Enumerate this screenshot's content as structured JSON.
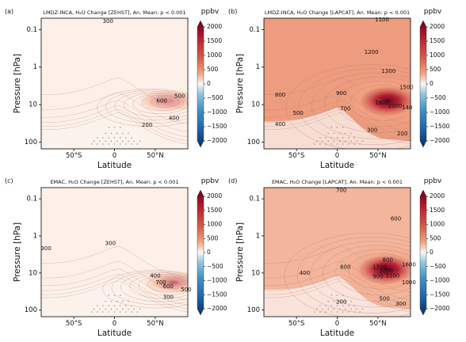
{
  "figure": {
    "shared": {
      "xlabel": "Latitude",
      "ylabel": "Pressure [hPa]",
      "x_ticks": [
        "50°S",
        "0",
        "50°N"
      ],
      "y_ticks": [
        "0.1",
        "1",
        "10",
        "100"
      ],
      "colorbar_unit": "ppbv",
      "colorbar_ticks": [
        "2000",
        "1500",
        "1000",
        "500",
        "0",
        "−500",
        "−1000",
        "−1500",
        "−2000"
      ],
      "colors": {
        "pos_low": "#fdf0e8",
        "pos_mid": "#f4a582",
        "pos_high": "#d6604d",
        "pos_max": "#b2182b",
        "pos_extreme": "#67001f",
        "neg_low": "#e9f1f7",
        "neg_mid": "#4393c3",
        "neg_max": "#053061",
        "contour": "#b07a6a",
        "stipple": "#888888"
      }
    }
  },
  "chart_data": [
    {
      "panel": "(a)",
      "type": "heatmap",
      "title": "LMDZ-INCA, H₂O Change [ZEHST], An. Mean: p < 0.001",
      "xlabel": "Latitude",
      "ylabel": "Pressure [hPa]",
      "xlim": [
        -90,
        90
      ],
      "ylim_hPa": [
        0.05,
        150
      ],
      "yscale": "log",
      "colorbar": {
        "label": "ppbv",
        "range": [
          -2000,
          2000
        ]
      },
      "contour_labels": [
        {
          "value": "300",
          "lat": -8,
          "p": 0.06
        },
        {
          "value": "500",
          "lat": 80,
          "p": 6
        },
        {
          "value": "600",
          "lat": 58,
          "p": 8
        },
        {
          "value": "400",
          "lat": 73,
          "p": 23
        },
        {
          "value": "200",
          "lat": 40,
          "p": 35
        }
      ],
      "max_ppbv": 650,
      "max_location": {
        "lat": 65,
        "p": 8
      }
    },
    {
      "panel": "(b)",
      "type": "heatmap",
      "title": "LMDZ-INCA, H₂O Change [LAPCAT], An. Mean: p < 0.001",
      "xlabel": "Latitude",
      "ylabel": "",
      "xlim": [
        -90,
        90
      ],
      "ylim_hPa": [
        0.05,
        150
      ],
      "yscale": "log",
      "colorbar": {
        "label": "ppbv",
        "range": [
          -2000,
          2000
        ]
      },
      "contour_labels": [
        {
          "value": "1100",
          "lat": 55,
          "p": 0.055
        },
        {
          "value": "1200",
          "lat": 42,
          "p": 0.4
        },
        {
          "value": "1300",
          "lat": 63,
          "p": 1.3
        },
        {
          "value": "1500",
          "lat": 85,
          "p": 3.5
        },
        {
          "value": "800",
          "lat": -70,
          "p": 5.5
        },
        {
          "value": "900",
          "lat": 5,
          "p": 5
        },
        {
          "value": "1800",
          "lat": 55,
          "p": 9
        },
        {
          "value": "2000",
          "lat": 71,
          "p": 11
        },
        {
          "value": "140",
          "lat": 86,
          "p": 12
        },
        {
          "value": "700",
          "lat": 10,
          "p": 13
        },
        {
          "value": "500",
          "lat": -48,
          "p": 17
        },
        {
          "value": "400",
          "lat": -70,
          "p": 33
        },
        {
          "value": "300",
          "lat": 43,
          "p": 48
        },
        {
          "value": "200",
          "lat": 80,
          "p": 60
        }
      ],
      "max_ppbv": 2100,
      "max_location": {
        "lat": 62,
        "p": 8
      }
    },
    {
      "panel": "(c)",
      "type": "heatmap",
      "title": "EMAC, H₂O Change [ZEHST], An. Mean: p < 0.001",
      "xlabel": "Latitude",
      "ylabel": "Pressure [hPa]",
      "xlim": [
        -90,
        90
      ],
      "ylim_hPa": [
        0.05,
        150
      ],
      "yscale": "log",
      "colorbar": {
        "label": "ppbv",
        "range": [
          -2000,
          2000
        ]
      },
      "contour_labels": [
        {
          "value": "300",
          "lat": -84,
          "p": 2.2
        },
        {
          "value": "300",
          "lat": -5,
          "p": 1.6
        },
        {
          "value": "400",
          "lat": 50,
          "p": 12
        },
        {
          "value": "700",
          "lat": 57,
          "p": 18
        },
        {
          "value": "600",
          "lat": 66,
          "p": 23
        },
        {
          "value": "300",
          "lat": 66,
          "p": 45
        },
        {
          "value": "500",
          "lat": 88,
          "p": 28
        }
      ],
      "max_ppbv": 800,
      "max_location": {
        "lat": 72,
        "p": 18
      }
    },
    {
      "panel": "(d)",
      "type": "heatmap",
      "title": "EMAC, H₂O Change [LAPCAT], An. Mean: p < 0.001",
      "xlabel": "Latitude",
      "ylabel": "",
      "xlim": [
        -90,
        90
      ],
      "ylim_hPa": [
        0.05,
        150
      ],
      "yscale": "log",
      "colorbar": {
        "label": "ppbv",
        "range": [
          -2000,
          2000
        ]
      },
      "contour_labels": [
        {
          "value": "700",
          "lat": 5,
          "p": 0.06
        },
        {
          "value": "600",
          "lat": 72,
          "p": 0.35
        },
        {
          "value": "400",
          "lat": -40,
          "p": 10
        },
        {
          "value": "600",
          "lat": 10,
          "p": 7
        },
        {
          "value": "800",
          "lat": 62,
          "p": 4.5
        },
        {
          "value": "1200",
          "lat": 52,
          "p": 7
        },
        {
          "value": "1600",
          "lat": 88,
          "p": 6
        },
        {
          "value": "2000",
          "lat": 60,
          "p": 9
        },
        {
          "value": "900",
          "lat": 50,
          "p": 12.5
        },
        {
          "value": "1100",
          "lat": 68,
          "p": 12
        },
        {
          "value": "1000",
          "lat": 88,
          "p": 18
        },
        {
          "value": "200",
          "lat": 5,
          "p": 60
        },
        {
          "value": "500",
          "lat": 58,
          "p": 50
        },
        {
          "value": "300",
          "lat": 78,
          "p": 68
        }
      ],
      "max_ppbv": 2200,
      "max_location": {
        "lat": 60,
        "p": 8
      }
    }
  ]
}
